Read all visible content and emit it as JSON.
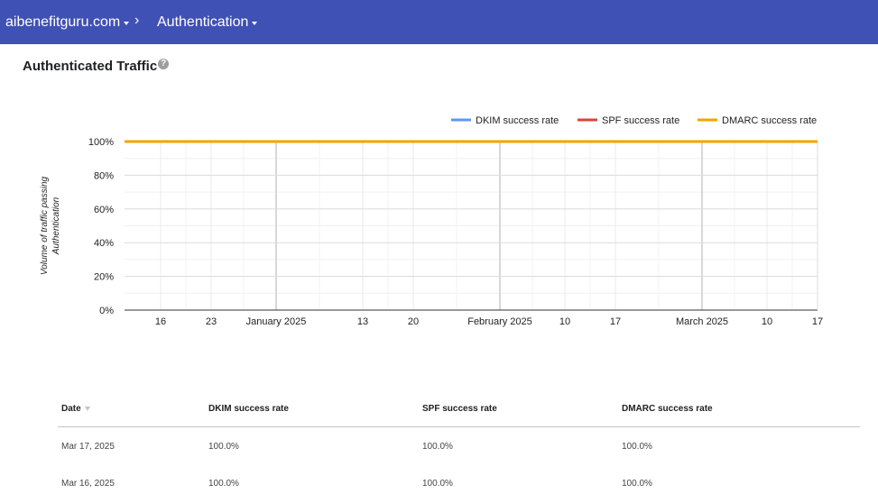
{
  "header": {
    "domain": "aibenefitguru.com",
    "separator": "›",
    "section": "Authentication"
  },
  "page": {
    "title": "Authenticated Traffic",
    "help_glyph": "?"
  },
  "chart_data": {
    "type": "line",
    "ylabel": "Volume of traffic passing Authentication",
    "xlabel": "",
    "ylim": [
      0,
      100
    ],
    "y_ticks": [
      "0%",
      "20%",
      "40%",
      "60%",
      "80%",
      "100%"
    ],
    "x_range": [
      "2024-12-11",
      "2025-03-17"
    ],
    "x_ticks": [
      {
        "date": "2024-12-16",
        "label": "16",
        "major": false
      },
      {
        "date": "2024-12-23",
        "label": "23",
        "major": false
      },
      {
        "date": "2025-01-01",
        "label": "January 2025",
        "major": true
      },
      {
        "date": "2025-01-13",
        "label": "13",
        "major": false
      },
      {
        "date": "2025-01-20",
        "label": "20",
        "major": false
      },
      {
        "date": "2025-02-01",
        "label": "February 2025",
        "major": true
      },
      {
        "date": "2025-02-10",
        "label": "10",
        "major": false
      },
      {
        "date": "2025-02-17",
        "label": "17",
        "major": false
      },
      {
        "date": "2025-03-01",
        "label": "March 2025",
        "major": true
      },
      {
        "date": "2025-03-10",
        "label": "10",
        "major": false
      },
      {
        "date": "2025-03-17",
        "label": "17",
        "major": false
      }
    ],
    "grid": true,
    "legend": "top-right",
    "series": [
      {
        "name": "DKIM success rate",
        "color": "#5e97f6",
        "x": [
          "2024-12-11",
          "2025-03-17"
        ],
        "values": [
          100,
          100
        ]
      },
      {
        "name": "SPF success rate",
        "color": "#db4437",
        "x": [
          "2024-12-11",
          "2025-03-17"
        ],
        "values": [
          100,
          100
        ]
      },
      {
        "name": "DMARC success rate",
        "color": "#f4a300",
        "x": [
          "2024-12-11",
          "2025-03-17"
        ],
        "values": [
          100,
          100
        ]
      }
    ]
  },
  "table": {
    "columns": [
      "Date",
      "DKIM success rate",
      "SPF success rate",
      "DMARC success rate"
    ],
    "rows": [
      [
        "Mar 17, 2025",
        "100.0%",
        "100.0%",
        "100.0%"
      ],
      [
        "Mar 16, 2025",
        "100.0%",
        "100.0%",
        "100.0%"
      ]
    ]
  }
}
